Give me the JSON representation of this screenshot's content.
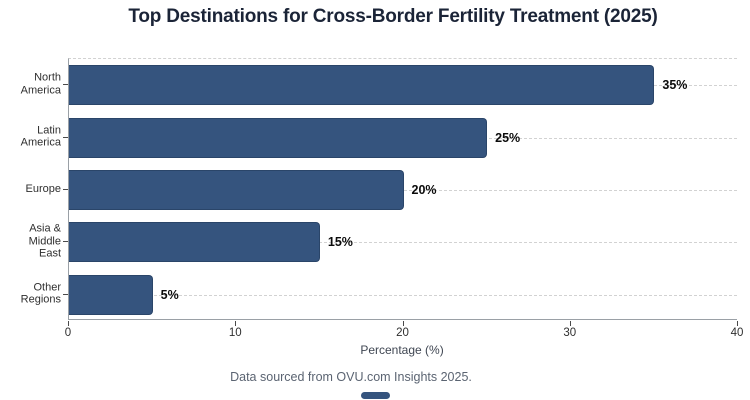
{
  "title": "Top Destinations for Cross-Border Fertility Treatment (2025)",
  "footer": "Data sourced from OVU.com Insights 2025.",
  "chart_data": {
    "type": "bar",
    "orientation": "horizontal",
    "title": "Top Destinations for Cross-Border Fertility Treatment (2025)",
    "categories": [
      "North America",
      "Latin America",
      "Europe",
      "Asia & Middle East",
      "Other Regions"
    ],
    "category_label_lines": [
      [
        "North",
        "America"
      ],
      [
        "Latin",
        "America"
      ],
      [
        "Europe"
      ],
      [
        "Asia &",
        "Middle",
        "East"
      ],
      [
        "Other",
        "Regions"
      ]
    ],
    "values": [
      35,
      25,
      20,
      15,
      5
    ],
    "value_labels": [
      "35%",
      "25%",
      "20%",
      "15%",
      "5%"
    ],
    "xlabel": "Percentage (%)",
    "ylabel": "",
    "xlim": [
      0,
      40
    ],
    "x_ticks": [
      0,
      10,
      20,
      30,
      40
    ],
    "x_tick_labels": [
      "0",
      "10",
      "20",
      "30",
      "40"
    ],
    "grid": "horizontal dashed gridlines at category centers, dashed top border",
    "legend": "none",
    "annotation": "Data sourced from OVU.com Insights 2025."
  },
  "colors": {
    "bar_fill": "#35547E",
    "bar_border": "#2A4569",
    "gridline": "#D2D2D2",
    "axis_line": "#9AA0A6",
    "title_text": "#1B2437",
    "tick_text": "#2F2F2F",
    "axis_title_text": "#3F4652",
    "footer_text": "#5B6472",
    "value_label_text": "#0B0B0B",
    "background": "#FFFFFF"
  }
}
